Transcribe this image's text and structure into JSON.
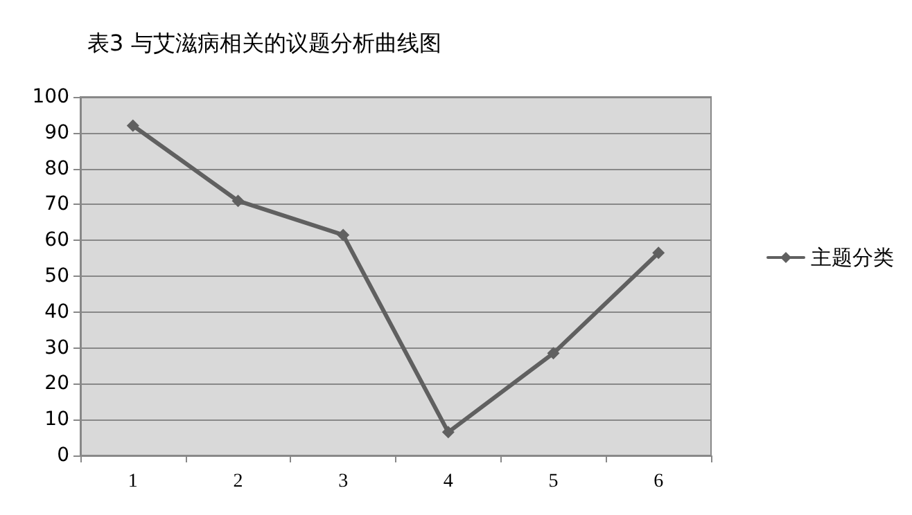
{
  "chart_data": {
    "type": "line",
    "title": "表3 与艾滋病相关的议题分析曲线图",
    "categories": [
      "1",
      "2",
      "3",
      "4",
      "5",
      "6"
    ],
    "series": [
      {
        "name": "主题分类",
        "color": "#606060",
        "values": [
          92,
          71,
          61.5,
          6.5,
          28.5,
          56.5
        ]
      }
    ],
    "ylim": [
      0,
      100
    ],
    "yticks": [
      0,
      10,
      20,
      30,
      40,
      50,
      60,
      70,
      80,
      90,
      100
    ],
    "grid": "y",
    "legend": "right",
    "marker": "diamond",
    "line_style": "solid"
  }
}
